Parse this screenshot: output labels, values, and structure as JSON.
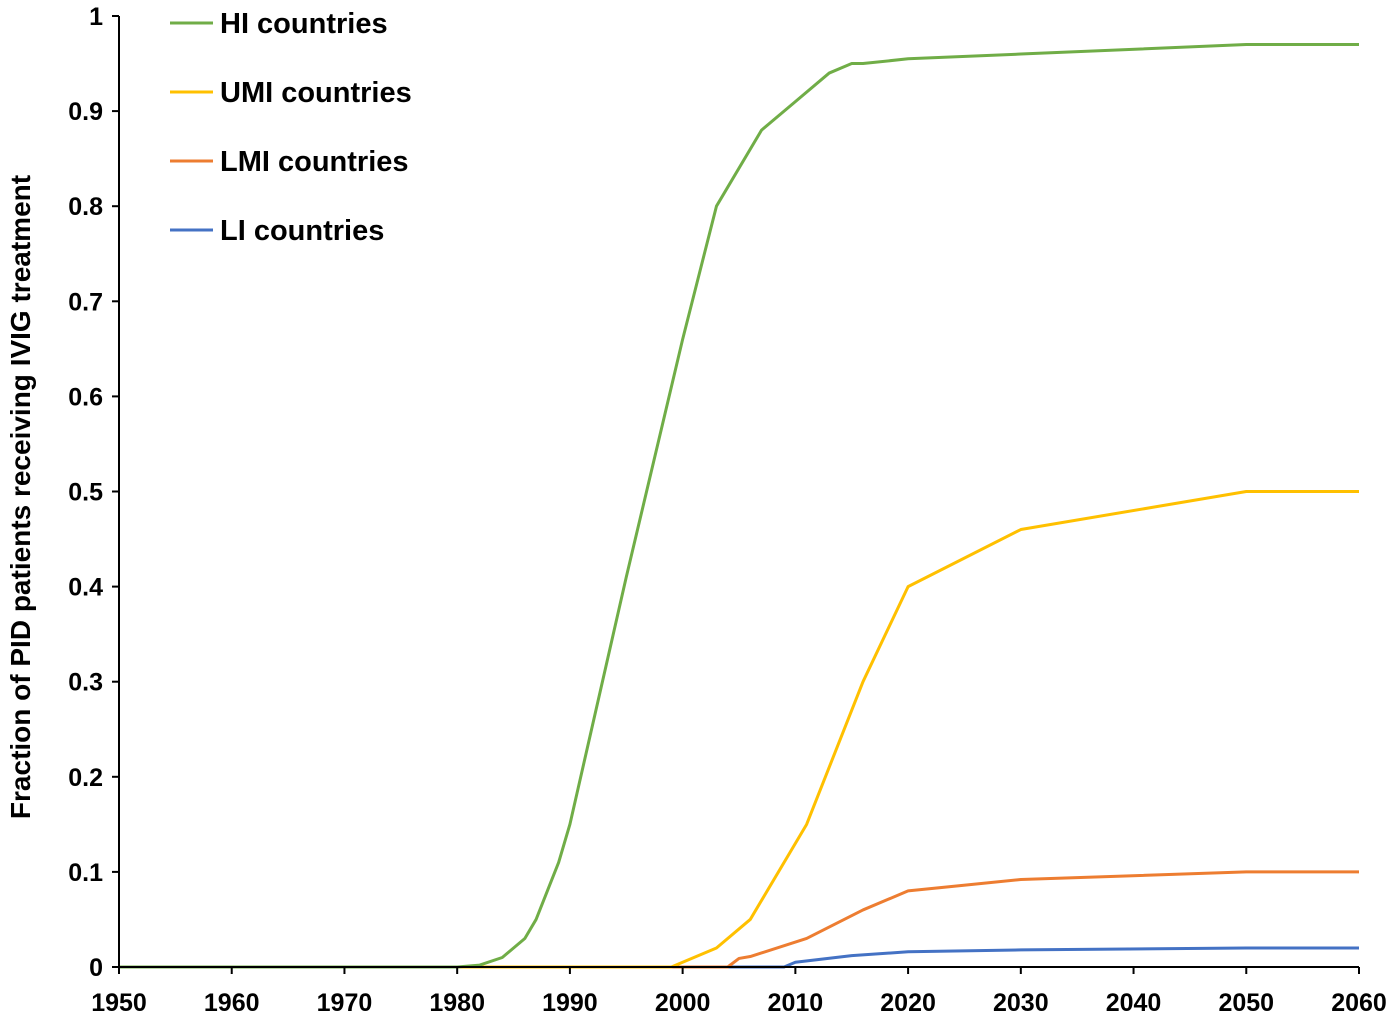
{
  "chart_data": {
    "type": "line",
    "title": "",
    "xlabel": "",
    "ylabel": "Fraction of PID patients receiving IVIG treatment",
    "xlim": [
      1950,
      2060
    ],
    "ylim": [
      0,
      1
    ],
    "x_ticks": [
      1950,
      1960,
      1970,
      1980,
      1990,
      2000,
      2010,
      2020,
      2030,
      2040,
      2050,
      2060
    ],
    "y_ticks": [
      0,
      0.1,
      0.2,
      0.3,
      0.4,
      0.5,
      0.6,
      0.7,
      0.8,
      0.9,
      1
    ],
    "y_tick_labels": [
      "0",
      "0.1",
      "0.2",
      "0.3",
      "0.4",
      "0.5",
      "0.6",
      "0.7",
      "0.8",
      "0.9",
      "1"
    ],
    "grid": false,
    "legend_position": "top-left",
    "series": [
      {
        "name": "HI countries",
        "color": "#70ad47",
        "points": [
          [
            1950,
            0
          ],
          [
            1980,
            0
          ],
          [
            1982,
            0.002
          ],
          [
            1984,
            0.01
          ],
          [
            1986,
            0.03
          ],
          [
            1987,
            0.05
          ],
          [
            1988,
            0.08
          ],
          [
            1989,
            0.11
          ],
          [
            1990,
            0.15
          ],
          [
            1995,
            0.41
          ],
          [
            2000,
            0.66
          ],
          [
            2003,
            0.8
          ],
          [
            2007,
            0.88
          ],
          [
            2010,
            0.91
          ],
          [
            2013,
            0.94
          ],
          [
            2015,
            0.95
          ],
          [
            2016,
            0.95
          ],
          [
            2020,
            0.955
          ],
          [
            2030,
            0.96
          ],
          [
            2050,
            0.97
          ],
          [
            2060,
            0.97
          ]
        ]
      },
      {
        "name": "UMI countries",
        "color": "#ffc000",
        "points": [
          [
            1950,
            0
          ],
          [
            1999,
            0
          ],
          [
            2003,
            0.02
          ],
          [
            2006,
            0.05
          ],
          [
            2011,
            0.15
          ],
          [
            2016,
            0.3
          ],
          [
            2020,
            0.4
          ],
          [
            2030,
            0.46
          ],
          [
            2050,
            0.5
          ],
          [
            2060,
            0.5
          ]
        ]
      },
      {
        "name": "LMI countries",
        "color": "#ed7d31",
        "points": [
          [
            1950,
            0
          ],
          [
            2004,
            0
          ],
          [
            2005,
            0.009
          ],
          [
            2006,
            0.011
          ],
          [
            2011,
            0.03
          ],
          [
            2016,
            0.06
          ],
          [
            2020,
            0.08
          ],
          [
            2030,
            0.092
          ],
          [
            2050,
            0.1
          ],
          [
            2060,
            0.1
          ]
        ]
      },
      {
        "name": "LI countries",
        "color": "#4472c4",
        "points": [
          [
            1950,
            0
          ],
          [
            2009,
            0
          ],
          [
            2010,
            0.005
          ],
          [
            2015,
            0.012
          ],
          [
            2020,
            0.016
          ],
          [
            2030,
            0.018
          ],
          [
            2050,
            0.02
          ],
          [
            2060,
            0.02
          ]
        ]
      }
    ]
  }
}
